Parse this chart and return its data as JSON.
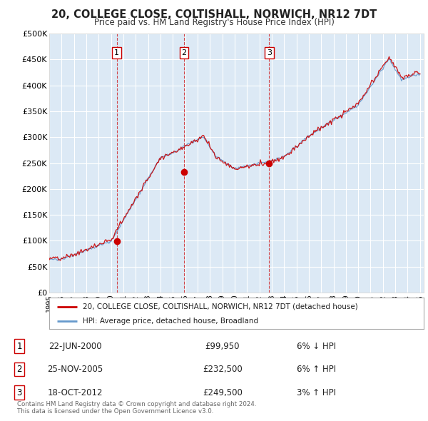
{
  "title": "20, COLLEGE CLOSE, COLTISHALL, NORWICH, NR12 7DT",
  "subtitle": "Price paid vs. HM Land Registry's House Price Index (HPI)",
  "plot_bg_color": "#dce9f5",
  "grid_color": "#ffffff",
  "ylim": [
    0,
    500000
  ],
  "yticks": [
    0,
    50000,
    100000,
    150000,
    200000,
    250000,
    300000,
    350000,
    400000,
    450000,
    500000
  ],
  "ytick_labels": [
    "£0",
    "£50K",
    "£100K",
    "£150K",
    "£200K",
    "£250K",
    "£300K",
    "£350K",
    "£400K",
    "£450K",
    "£500K"
  ],
  "sales": [
    {
      "index": 1,
      "date_num": 2000.47,
      "price": 99950
    },
    {
      "index": 2,
      "date_num": 2005.9,
      "price": 232500
    },
    {
      "index": 3,
      "date_num": 2012.8,
      "price": 249500
    }
  ],
  "sale_dates": [
    "22-JUN-2000",
    "25-NOV-2005",
    "18-OCT-2012"
  ],
  "sale_prices": [
    "£99,950",
    "£232,500",
    "£249,500"
  ],
  "sale_pcts": [
    "6% ↓ HPI",
    "6% ↑ HPI",
    "3% ↑ HPI"
  ],
  "legend_line1": "20, COLLEGE CLOSE, COLTISHALL, NORWICH, NR12 7DT (detached house)",
  "legend_line2": "HPI: Average price, detached house, Broadland",
  "footer1": "Contains HM Land Registry data © Crown copyright and database right 2024.",
  "footer2": "This data is licensed under the Open Government Licence v3.0.",
  "hpi_color": "#6699cc",
  "price_color": "#cc0000"
}
